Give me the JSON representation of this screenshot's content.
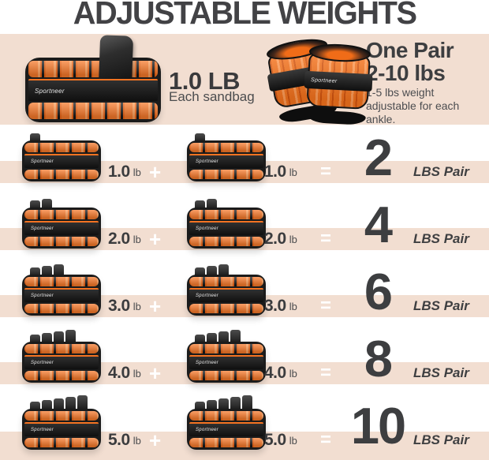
{
  "brand": "Sportneer",
  "title": "ADJUSTABLE WEIGHTS",
  "header": {
    "sandbag_weight": "1.0 LB",
    "sandbag_caption": "Each sandbag",
    "pair_title_line1": "One Pair",
    "pair_title_line2": "2-10 lbs",
    "pair_caption_line1": "1-5 lbs weight",
    "pair_caption_line2": "adjustable for each ankle."
  },
  "operators": {
    "plus": "+",
    "equals": "="
  },
  "unit": "lb",
  "total_unit": "LBS Pair",
  "rows": [
    {
      "left_value": "1.0",
      "right_value": "1.0",
      "total": "2",
      "sandbags": 1
    },
    {
      "left_value": "2.0",
      "right_value": "2.0",
      "total": "4",
      "sandbags": 2
    },
    {
      "left_value": "3.0",
      "right_value": "3.0",
      "total": "6",
      "sandbags": 3
    },
    {
      "left_value": "4.0",
      "right_value": "4.0",
      "total": "8",
      "sandbags": 4
    },
    {
      "left_value": "5.0",
      "right_value": "5.0",
      "total": "10",
      "sandbags": 5
    }
  ],
  "colors": {
    "accent_orange": "#f4731e",
    "background_peach": "#f2ded1",
    "text_dark": "#3d3e40",
    "operator_white": "#ffffff"
  }
}
